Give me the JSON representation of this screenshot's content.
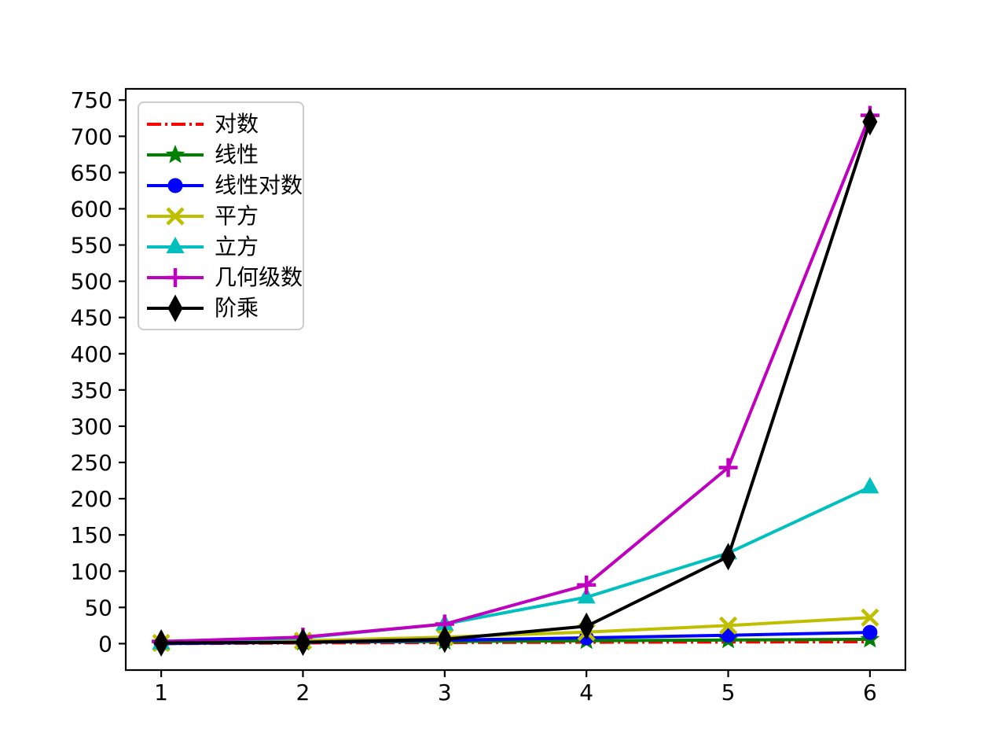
{
  "figure": {
    "background": "#ffffff",
    "title": ""
  },
  "chart_data": {
    "type": "line",
    "title": "",
    "xlabel": "",
    "ylabel": "",
    "grid": false,
    "legend_position": "upper left",
    "x": [
      1,
      2,
      3,
      4,
      5,
      6
    ],
    "x_tick_labels": [
      "1",
      "2",
      "3",
      "4",
      "5",
      "6"
    ],
    "y_tick_labels": [
      "0",
      "50",
      "100",
      "150",
      "200",
      "250",
      "300",
      "350",
      "400",
      "450",
      "500",
      "550",
      "600",
      "650",
      "700",
      "750"
    ],
    "y_tick_values": [
      0,
      50,
      100,
      150,
      200,
      250,
      300,
      350,
      400,
      450,
      500,
      550,
      600,
      650,
      700,
      750
    ],
    "xlim": [
      0.75,
      6.25
    ],
    "ylim": [
      -36.45,
      765.45
    ],
    "axis_color": "#000000",
    "series": [
      {
        "name": "对数",
        "color": "#ff0000",
        "line": "dashdot",
        "marker": "none",
        "values": [
          0,
          1,
          1.58,
          2,
          2.32,
          2.58
        ]
      },
      {
        "name": "线性",
        "color": "#008000",
        "line": "solid",
        "marker": "star",
        "values": [
          1,
          2,
          3,
          4,
          5,
          6
        ]
      },
      {
        "name": "线性对数",
        "color": "#0000ff",
        "line": "solid",
        "marker": "circle",
        "values": [
          0,
          2,
          4.75,
          8,
          11.61,
          15.51
        ]
      },
      {
        "name": "平方",
        "color": "#bfbf00",
        "line": "solid",
        "marker": "x",
        "values": [
          1,
          4,
          9,
          16,
          25,
          36
        ]
      },
      {
        "name": "立方",
        "color": "#00bfbf",
        "line": "solid",
        "marker": "triangle-up",
        "values": [
          1,
          8,
          27,
          64,
          125,
          216
        ]
      },
      {
        "name": "几何级数",
        "color": "#bf00bf",
        "line": "solid",
        "marker": "plus",
        "values": [
          3,
          9,
          27,
          81,
          243,
          729
        ]
      },
      {
        "name": "阶乘",
        "color": "#000000",
        "line": "solid",
        "marker": "thin-diamond",
        "values": [
          1,
          2,
          6,
          24,
          120,
          720
        ]
      }
    ]
  }
}
